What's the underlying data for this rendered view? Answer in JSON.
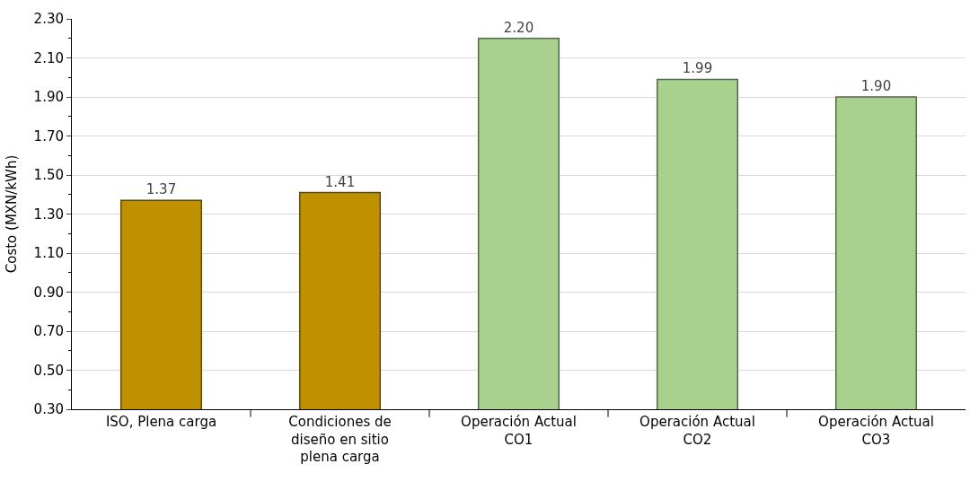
{
  "chart_data": {
    "type": "bar",
    "ylabel": "Costo (MXN/kWh)",
    "categories": [
      "ISO, Plena carga",
      "Condiciones de diseño en sitio plena carga",
      "Operación Actual CO1",
      "Operación Actual CO2",
      "Operación Actual CO3"
    ],
    "values": [
      1.37,
      1.41,
      2.2,
      1.99,
      1.9
    ],
    "colors": [
      "#bf9000",
      "#bf9000",
      "#a9d18e",
      "#a9d18e",
      "#a9d18e"
    ],
    "value_labels": [
      "1.37",
      "1.41",
      "2.20",
      "1.99",
      "1.90"
    ],
    "ylim": [
      0.3,
      2.3
    ],
    "yticks": [
      {
        "value": 0.3,
        "label": "0.30"
      },
      {
        "value": 0.5,
        "label": "0.50"
      },
      {
        "value": 0.7,
        "label": "0.70"
      },
      {
        "value": 0.9,
        "label": "0.90"
      },
      {
        "value": 1.1,
        "label": "1.10"
      },
      {
        "value": 1.3,
        "label": "1.30"
      },
      {
        "value": 1.5,
        "label": "1.50"
      },
      {
        "value": 1.7,
        "label": "1.70"
      },
      {
        "value": 1.9,
        "label": "1.90"
      },
      {
        "value": 2.1,
        "label": "2.10"
      },
      {
        "value": 2.3,
        "label": "2.30"
      }
    ],
    "grid": "y",
    "legend": false
  }
}
